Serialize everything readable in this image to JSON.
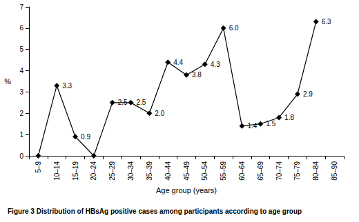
{
  "chart_data": {
    "type": "line",
    "title": "Figure 3 Distribution of HBsAg positive cases among participants according to age group",
    "x_label": "Age group (years)",
    "y_label": "%",
    "categories": [
      "5–9",
      "10–14",
      "15–19",
      "20–24",
      "25–29",
      "30–34",
      "35–39",
      "40–44",
      "45–49",
      "50–54",
      "55–59",
      "60–64",
      "65–69",
      "70–74",
      "75–79",
      "80–84",
      "85–90"
    ],
    "values": [
      0,
      3.3,
      0.9,
      0,
      2.5,
      2.5,
      2.0,
      4.4,
      3.8,
      4.3,
      6.0,
      1.4,
      1.5,
      1.8,
      2.9,
      6.3,
      null
    ],
    "value_labels": [
      null,
      "3.3",
      "0.9",
      null,
      "2.5",
      "2.5",
      "2.0",
      "4.4",
      "3.8",
      "4.3",
      "6.0",
      "1.4",
      "1.5",
      "1.8",
      "2.9",
      "6.3",
      null
    ],
    "data_labels": true,
    "color": "#000000",
    "marker": "diamond",
    "line_style": "solid",
    "ylim": [
      0,
      7
    ],
    "yticks": [
      0,
      1,
      2,
      3,
      4,
      5,
      6,
      7
    ],
    "grid": false
  }
}
